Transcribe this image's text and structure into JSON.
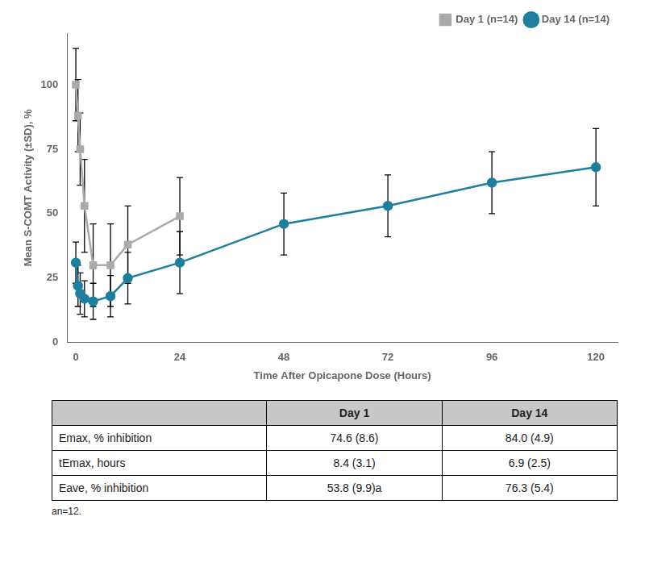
{
  "chart_data": {
    "type": "line",
    "xlabel": "Time After Opicapone Dose (Hours)",
    "ylabel": "Mean S-COMT Activity (±SD), %",
    "xlim": [
      -2,
      125
    ],
    "ylim": [
      0,
      120
    ],
    "xticks": [
      0,
      24,
      48,
      72,
      96,
      120
    ],
    "yticks": [
      0,
      25,
      50,
      75,
      100
    ],
    "grid": false,
    "legend": "upper right",
    "series": [
      {
        "name": "Day 1 (n=14)",
        "color": "#aaaaaa",
        "marker": "square",
        "x": [
          0,
          0.5,
          1,
          2,
          4,
          8,
          12,
          24
        ],
        "values": [
          100,
          88,
          75,
          53,
          30,
          30,
          38,
          49
        ],
        "error_minus": [
          14,
          14,
          14,
          18,
          16,
          16,
          15,
          15
        ],
        "error_plus": [
          14,
          14,
          14,
          18,
          16,
          16,
          15,
          15
        ]
      },
      {
        "name": "Day 14 (n=14)",
        "color": "#1e7f9c",
        "marker": "circle",
        "x": [
          0,
          0.5,
          1,
          2,
          4,
          8,
          12,
          24,
          48,
          72,
          96,
          120
        ],
        "values": [
          31,
          22,
          19,
          17,
          16,
          18,
          25,
          31,
          46,
          53,
          62,
          68
        ],
        "error_minus": [
          8,
          8,
          8,
          7,
          7,
          8,
          10,
          12,
          12,
          12,
          12,
          15
        ],
        "error_plus": [
          8,
          8,
          8,
          7,
          7,
          8,
          10,
          12,
          12,
          12,
          12,
          15
        ]
      }
    ],
    "table": {
      "header": [
        "Day 1",
        "Day 14"
      ],
      "rows": [
        {
          "label": "Emax, % inhibition",
          "values": [
            "74.6 (8.6)",
            "84.0 (4.9)"
          ]
        },
        {
          "label": "tEmax, hours",
          "values": [
            "8.4 (3.1)",
            "6.9 (2.5)"
          ]
        },
        {
          "label": "Eave, % inhibition",
          "values": [
            "53.8 (9.9)a",
            "76.3 (5.4)"
          ]
        }
      ],
      "footnote": "an=12."
    }
  }
}
